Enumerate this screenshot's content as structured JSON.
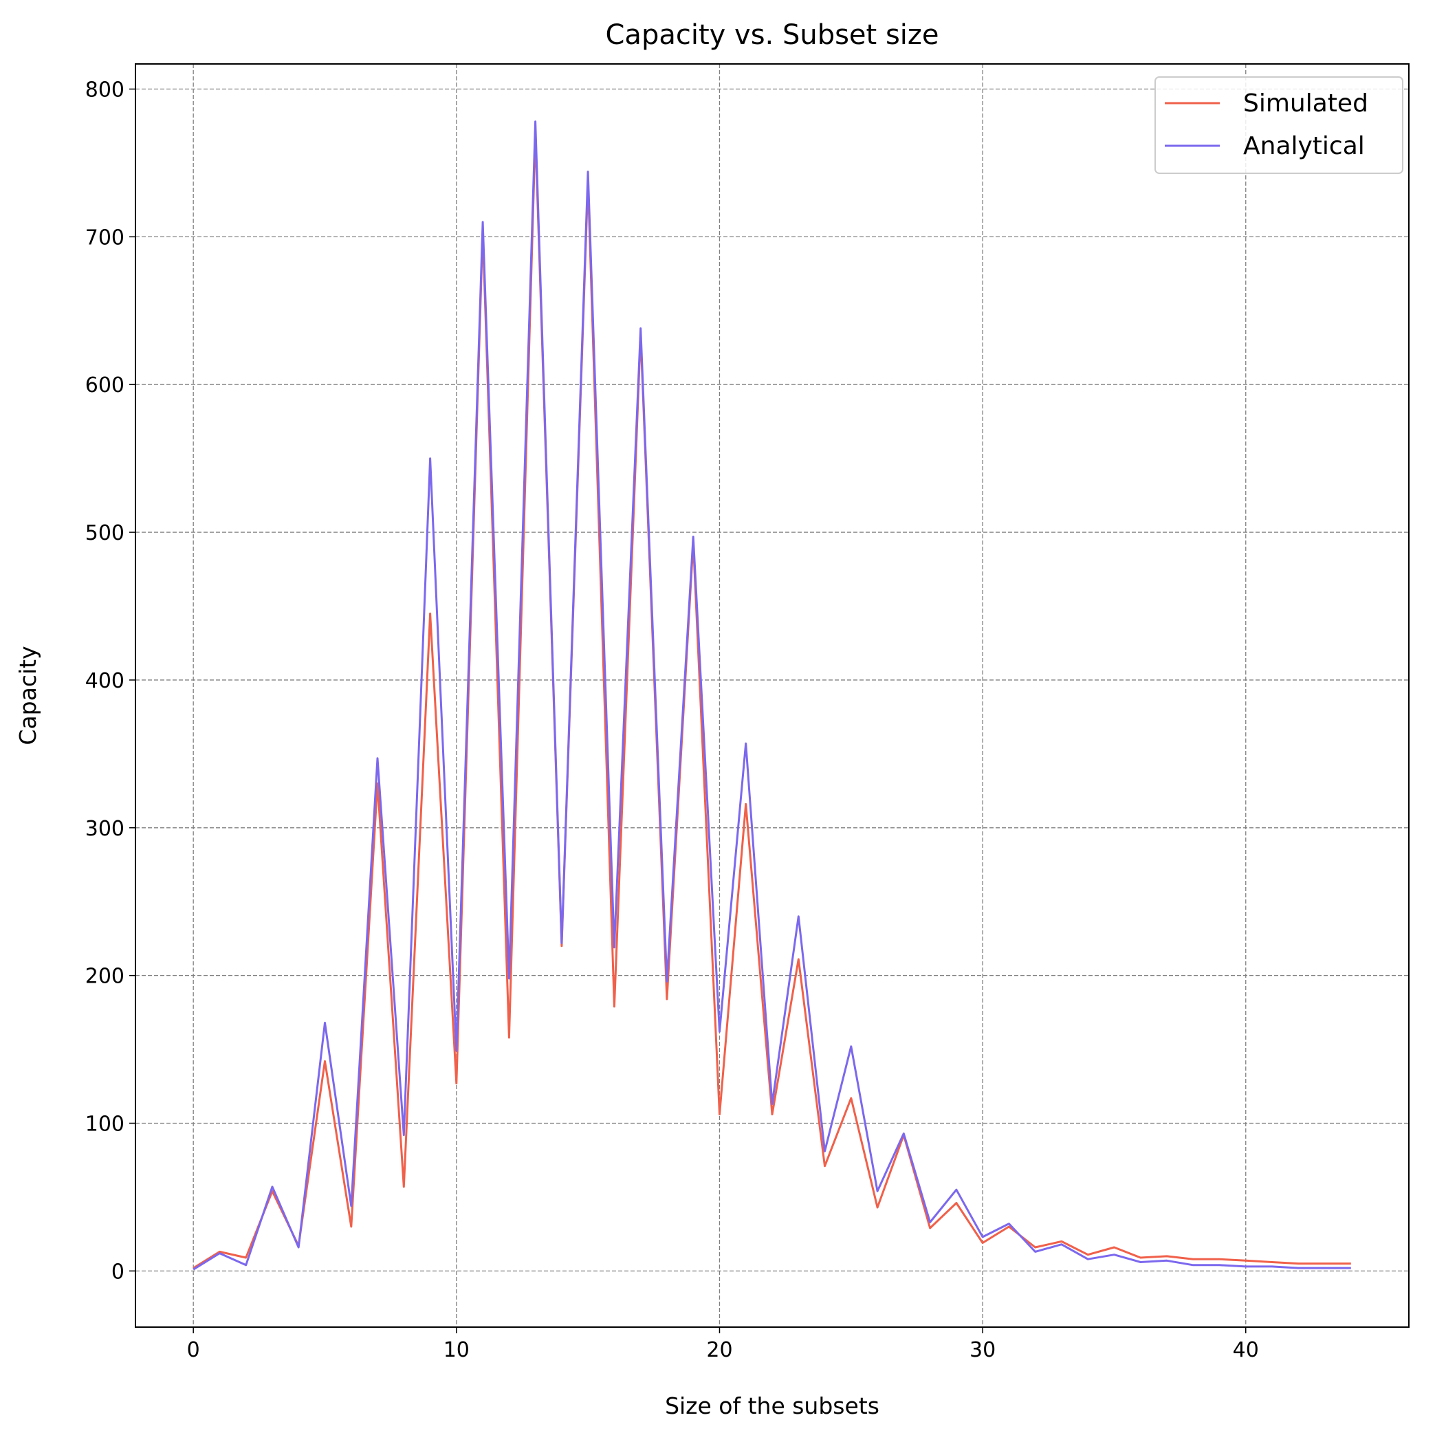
{
  "chart_data": {
    "type": "line",
    "title": "Capacity vs. Subset size",
    "xlabel": "Size of the subsets",
    "ylabel": "Capacity",
    "xlim": [
      -2.2,
      46.2
    ],
    "ylim": [
      -38,
      817
    ],
    "xticks": [
      0,
      10,
      20,
      30,
      40
    ],
    "yticks": [
      0,
      100,
      200,
      300,
      400,
      500,
      600,
      700,
      800
    ],
    "grid": true,
    "legend_position": "top-right",
    "x": [
      0,
      1,
      2,
      3,
      4,
      5,
      6,
      7,
      8,
      9,
      10,
      11,
      12,
      13,
      14,
      15,
      16,
      17,
      18,
      19,
      20,
      21,
      22,
      23,
      24,
      25,
      26,
      27,
      28,
      29,
      30,
      31,
      32,
      33,
      34,
      35,
      36,
      37,
      38,
      39,
      40,
      41,
      42,
      43,
      44
    ],
    "series": [
      {
        "name": "Simulated",
        "color": "#f0604a",
        "values": [
          2,
          13,
          9,
          54,
          17,
          142,
          30,
          330,
          57,
          445,
          127,
          704,
          158,
          770,
          220,
          737,
          179,
          634,
          184,
          493,
          106,
          316,
          106,
          211,
          71,
          117,
          43,
          92,
          29,
          46,
          19,
          30,
          16,
          20,
          11,
          16,
          9,
          10,
          8,
          8,
          7,
          6,
          5,
          5,
          5
        ]
      },
      {
        "name": "Analytical",
        "color": "#7b68ee",
        "values": [
          1,
          12,
          4,
          57,
          16,
          168,
          44,
          347,
          92,
          550,
          149,
          710,
          198,
          778,
          222,
          744,
          219,
          638,
          196,
          497,
          162,
          357,
          113,
          240,
          81,
          152,
          54,
          93,
          33,
          55,
          23,
          32,
          13,
          18,
          8,
          11,
          6,
          7,
          4,
          4,
          3,
          3,
          2,
          2,
          2
        ]
      }
    ]
  }
}
